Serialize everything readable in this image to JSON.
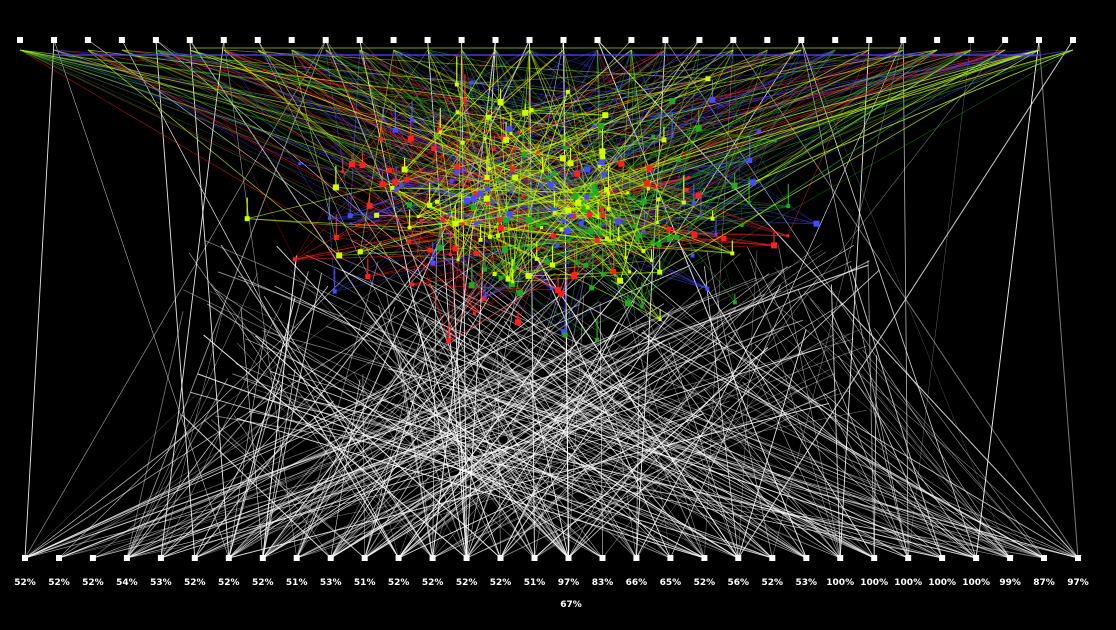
{
  "diagram": {
    "top_node_count": 32,
    "bottom_node_count": 32,
    "colors": {
      "background": "#000000",
      "nodes": "#ffffff",
      "white_edges": "#ffffff",
      "red_edges": "#ff2020",
      "blue_edges": "#4a4aff",
      "green_edges": "#22aa22",
      "lime_edges": "#ccff00"
    },
    "percent_labels": [
      "52%",
      "52%",
      "52%",
      "54%",
      "53%",
      "52%",
      "52%",
      "52%",
      "51%",
      "53%",
      "51%",
      "52%",
      "52%",
      "52%",
      "52%",
      "51%",
      "97%",
      "83%",
      "66%",
      "65%",
      "52%",
      "56%",
      "52%",
      "53%",
      "100%",
      "100%",
      "100%",
      "100%",
      "100%",
      "99%",
      "87%",
      "97%"
    ],
    "overall_label": "67%"
  }
}
